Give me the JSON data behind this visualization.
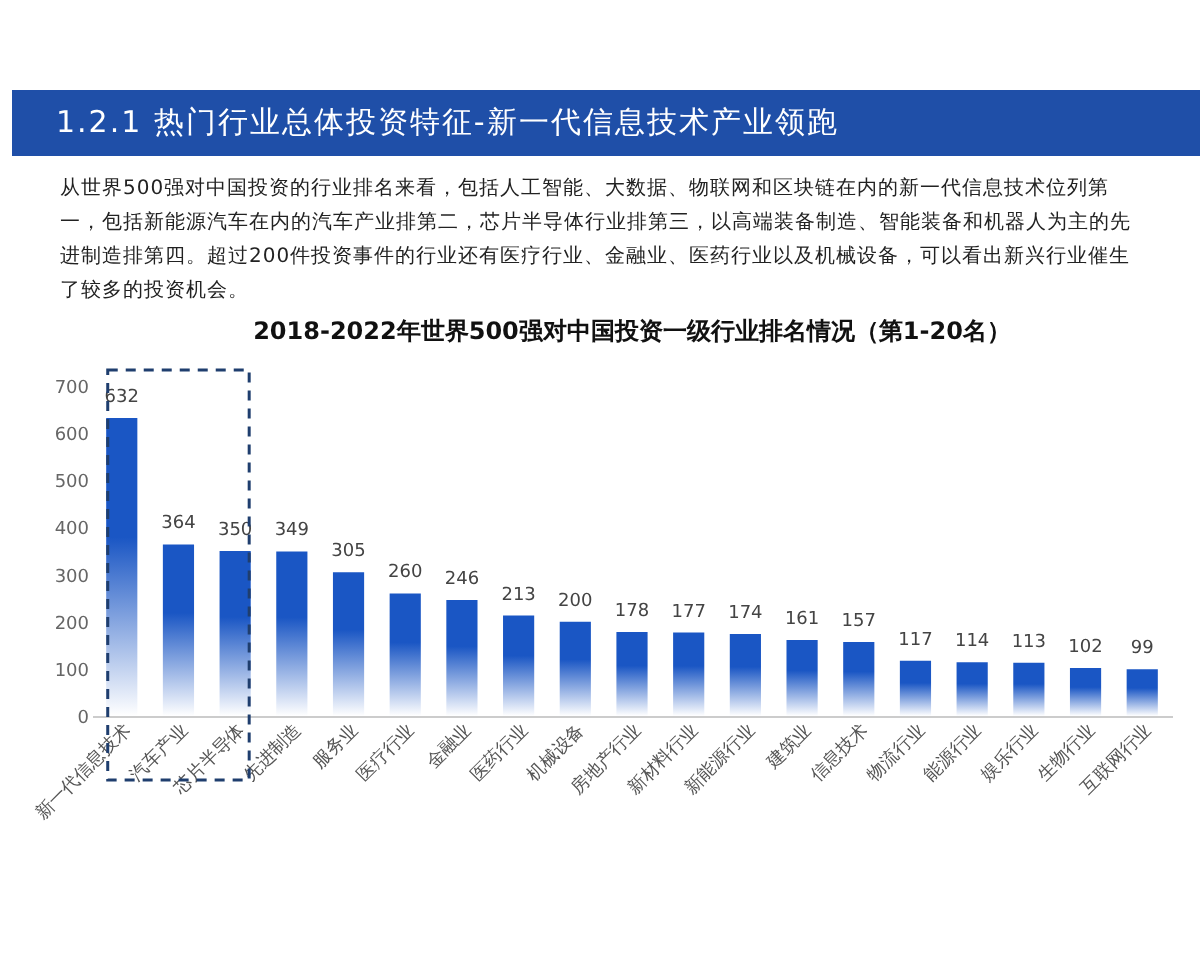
{
  "chart_data": {
    "type": "bar",
    "title": "2018-2022年世界500强对中国投资一级行业排名情况（第1-20名）",
    "annotations": [
      "1.2.1 热门行业总体投资特征-新一代信息技术产业领跑",
      "从世界500强对中国投资的行业排名来看，包括人工智能、大数据、物联网和区块链在内的新一代信息技术位列第一，包括新能源汽车在内的汽车产业排第二，芯片半导体行业排第三，以高端装备制造、智能装备和机器人为主的先进制造排第四。超过200件投资事件的行业还有医疗行业、金融业、医药行业以及机械设备，可以看出新兴行业催生了较多的投资机会。"
    ],
    "categories": [
      "新一代信息技术",
      "汽车产业",
      "芯片半导体",
      "先进制造",
      "服务业",
      "医疗行业",
      "金融业",
      "医药行业",
      "机械设备",
      "房地产行业",
      "新材料行业",
      "新能源行业",
      "建筑业",
      "信息技术",
      "物流行业",
      "能源行业",
      "娱乐行业",
      "生物行业",
      "互联网行业"
    ],
    "values": [
      632,
      364,
      350,
      349,
      305,
      260,
      246,
      213,
      200,
      178,
      177,
      174,
      161,
      157,
      117,
      114,
      113,
      102,
      99
    ],
    "color": "#1a56c4",
    "ylim": [
      0,
      700
    ],
    "yticks": [
      0,
      100,
      200,
      300,
      400,
      500,
      600,
      700
    ],
    "grid": false,
    "data_labels": true
  }
}
